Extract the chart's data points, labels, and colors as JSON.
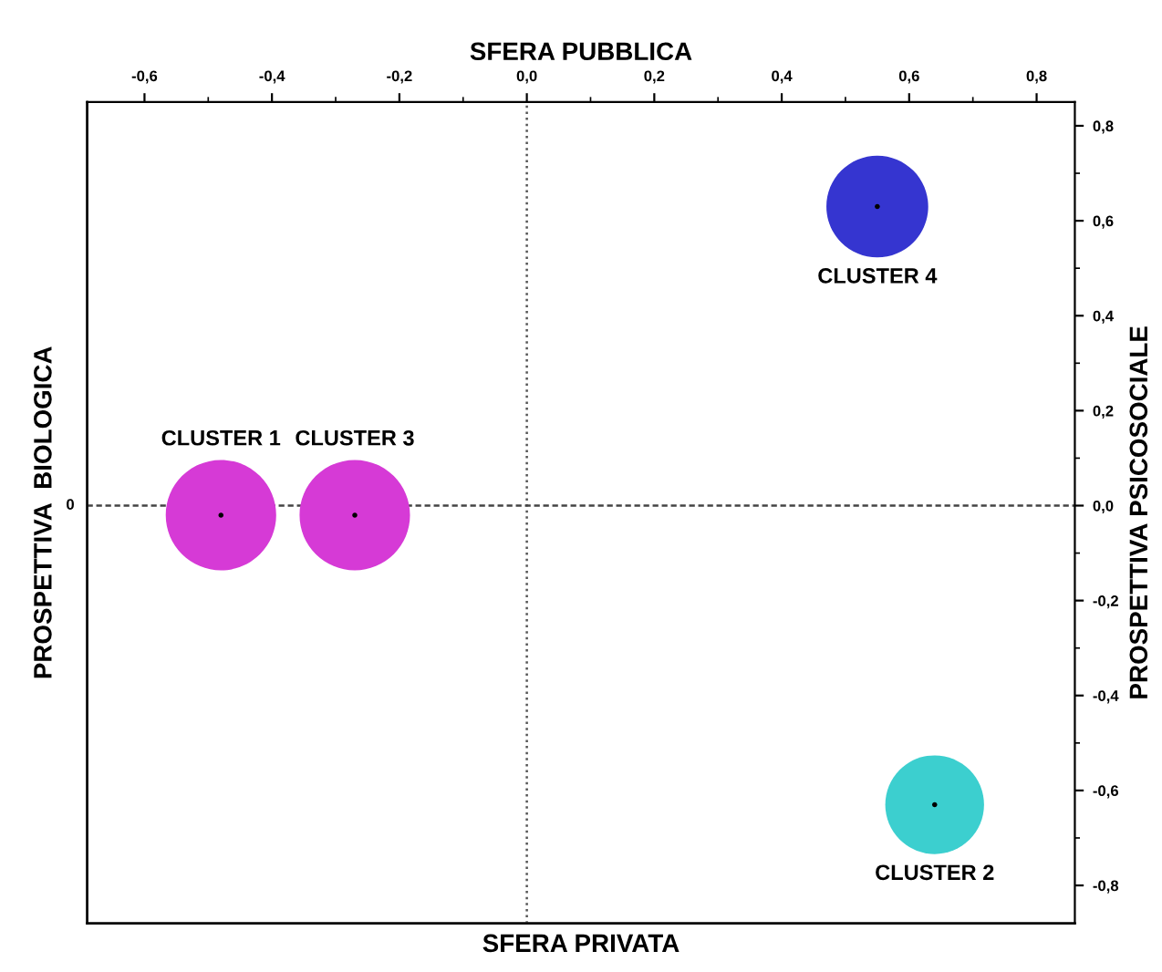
{
  "chart_data": {
    "type": "bubble",
    "xlabel": "SFERA PUBBLICA",
    "x2label": "SFERA PRIVATA",
    "ylabel": "PROSPETTIVA PSICOSOCIALE",
    "y2label": "PROSPETTIVA  BIOLOGICA",
    "series": [
      {
        "name": "CLUSTER 1",
        "color": "#d63ad6",
        "x": [
          -0.48
        ],
        "values": [
          -0.02
        ],
        "sizes": [
          1
        ]
      },
      {
        "name": "CLUSTER 3",
        "color": "#d63ad6",
        "x": [
          -0.27
        ],
        "values": [
          -0.02
        ],
        "sizes": [
          1
        ]
      },
      {
        "name": "CLUSTER 4",
        "color": "#3535d0",
        "x": [
          0.55
        ],
        "values": [
          0.63
        ],
        "sizes": [
          0.85
        ]
      },
      {
        "name": "CLUSTER 2",
        "color": "#3ccfcf",
        "x": [
          0.64
        ],
        "values": [
          -0.63
        ],
        "sizes": [
          0.8
        ]
      }
    ],
    "xlim": [
      -0.69,
      0.86
    ],
    "xticks": [
      {
        "value": -0.6,
        "label": "-0,6"
      },
      {
        "value": -0.4,
        "label": "-0,4"
      },
      {
        "value": -0.2,
        "label": "-0,2"
      },
      {
        "value": 0,
        "label": "0,0"
      },
      {
        "value": 0.2,
        "label": "0,2"
      },
      {
        "value": 0.4,
        "label": "0,4"
      },
      {
        "value": 0.6,
        "label": "0,6"
      },
      {
        "value": 0.8,
        "label": "0,8"
      }
    ],
    "ylim": [
      -0.88,
      0.85
    ],
    "yticks": [
      {
        "value": 0.8,
        "label": "0,8"
      },
      {
        "value": 0.6,
        "label": "0,6"
      },
      {
        "value": 0.4,
        "label": "0,4"
      },
      {
        "value": 0.2,
        "label": "0,2"
      },
      {
        "value": 0,
        "label": "0,0"
      },
      {
        "value": -0.2,
        "label": "-0,2"
      },
      {
        "value": -0.4,
        "label": "-0,4"
      },
      {
        "value": -0.6,
        "label": "-0,6"
      },
      {
        "value": -0.8,
        "label": "-0,8"
      }
    ],
    "annotations": [
      {
        "text": "0",
        "x": -0.69,
        "y": 0
      }
    ],
    "ref_lines": [
      {
        "axis": "x",
        "value": 0,
        "color": "#555555",
        "line_style": "dotted"
      },
      {
        "axis": "y",
        "value": 0,
        "color": "#444444",
        "line_style": "dashed"
      }
    ]
  }
}
